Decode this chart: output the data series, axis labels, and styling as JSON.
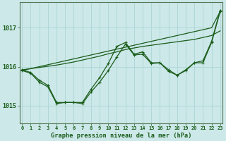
{
  "title": "Graphe pression niveau de la mer (hPa)",
  "bg_color": "#cce8e8",
  "plot_bg_color": "#cce8e8",
  "grid_color": "#b0d8d8",
  "line_color": "#1a5c1a",
  "marker_color": "#1a5c1a",
  "x_labels": [
    "0",
    "1",
    "2",
    "3",
    "4",
    "5",
    "6",
    "7",
    "8",
    "9",
    "10",
    "11",
    "12",
    "13",
    "14",
    "15",
    "16",
    "17",
    "18",
    "19",
    "20",
    "21",
    "22",
    "23"
  ],
  "ylim": [
    1014.55,
    1017.65
  ],
  "yticks": [
    1015,
    1016,
    1017
  ],
  "series_detail1": [
    1015.9,
    1015.83,
    1015.6,
    1015.48,
    1015.05,
    1015.08,
    1015.08,
    1015.05,
    1015.35,
    1015.6,
    1015.9,
    1016.25,
    1016.58,
    1016.3,
    1016.32,
    1016.08,
    1016.1,
    1015.88,
    1015.78,
    1015.9,
    1016.1,
    1016.1,
    1016.62,
    1017.42
  ],
  "series_detail2": [
    1015.92,
    1015.85,
    1015.65,
    1015.52,
    1015.08,
    1015.08,
    1015.08,
    1015.08,
    1015.42,
    1015.72,
    1016.08,
    1016.52,
    1016.62,
    1016.32,
    1016.38,
    1016.1,
    1016.1,
    1015.92,
    1015.78,
    1015.92,
    1016.1,
    1016.15,
    1016.65,
    1017.45
  ],
  "series_smooth1": [
    1015.9,
    1015.95,
    1016.0,
    1016.05,
    1016.1,
    1016.15,
    1016.2,
    1016.25,
    1016.3,
    1016.35,
    1016.4,
    1016.45,
    1016.5,
    1016.55,
    1016.6,
    1016.65,
    1016.7,
    1016.75,
    1016.8,
    1016.85,
    1016.9,
    1016.95,
    1017.0,
    1017.42
  ],
  "series_smooth2": [
    1015.92,
    1015.95,
    1015.98,
    1016.01,
    1016.04,
    1016.08,
    1016.12,
    1016.17,
    1016.22,
    1016.27,
    1016.33,
    1016.38,
    1016.44,
    1016.48,
    1016.52,
    1016.55,
    1016.58,
    1016.61,
    1016.64,
    1016.67,
    1016.7,
    1016.75,
    1016.8,
    1016.92
  ]
}
